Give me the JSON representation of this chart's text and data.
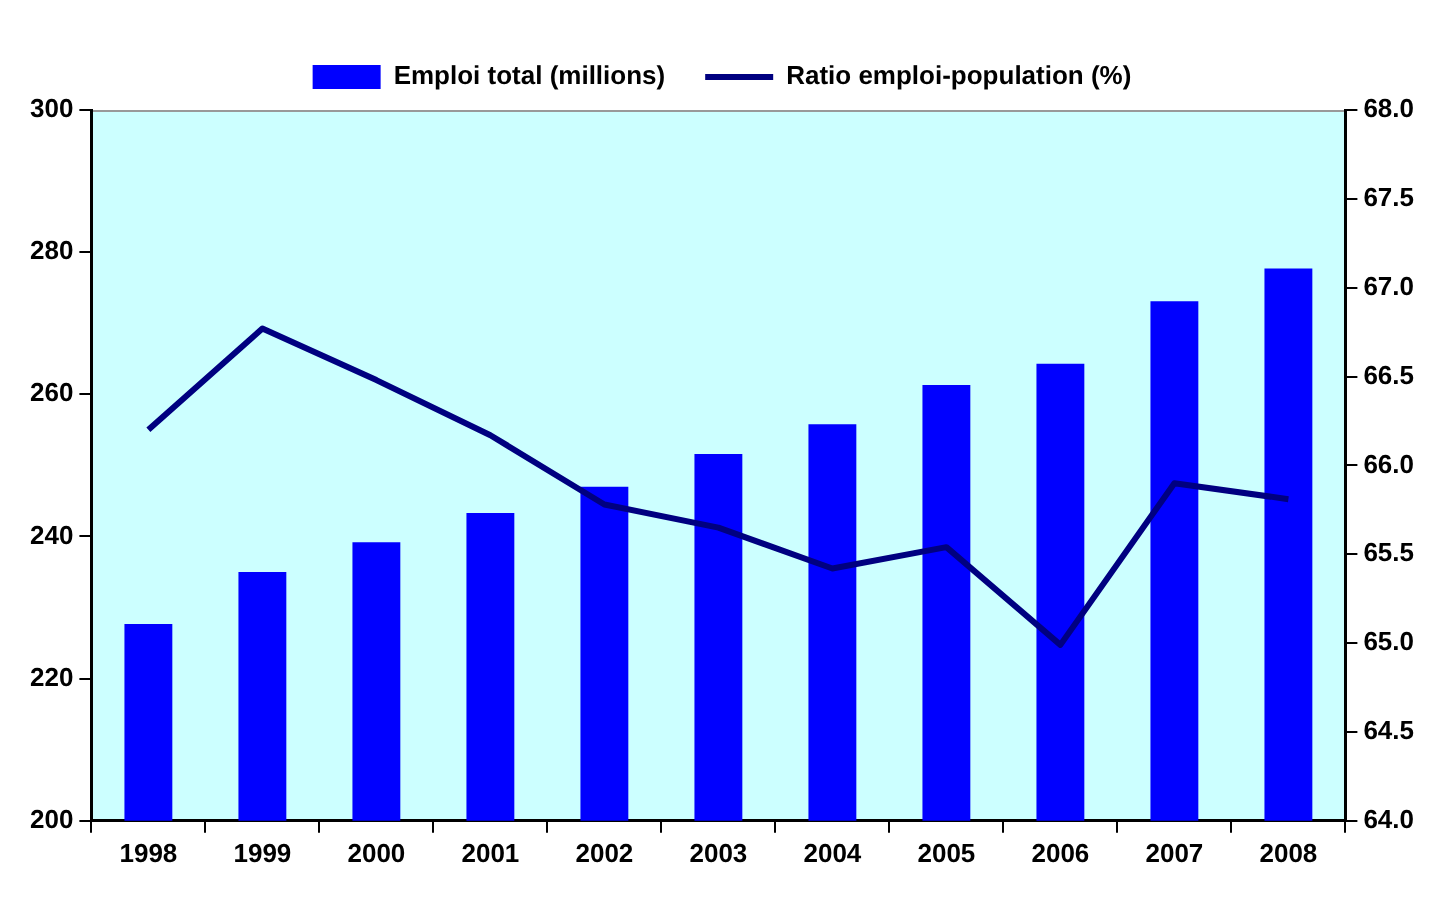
{
  "chart_data": {
    "type": "bar",
    "categories": [
      "1998",
      "1999",
      "2000",
      "2001",
      "2002",
      "2003",
      "2004",
      "2005",
      "2006",
      "2007",
      "2008"
    ],
    "series": [
      {
        "name": "Emploi total (millions)",
        "color": "#0000ff",
        "values": [
          227.7,
          235.0,
          239.2,
          243.3,
          247.0,
          251.6,
          255.8,
          261.3,
          264.3,
          273.1,
          277.7
        ]
      },
      {
        "name": "Ratio emploi-population (%)",
        "type": "line",
        "axis": "y2",
        "color": "#000080",
        "values": [
          66.2,
          66.77,
          66.48,
          66.17,
          65.78,
          65.65,
          65.42,
          65.54,
          64.99,
          65.9,
          65.81
        ]
      }
    ],
    "ylim": [
      200,
      300
    ],
    "yticks": [
      200,
      220,
      240,
      260,
      280,
      300
    ],
    "y2lim": [
      64,
      68
    ],
    "y2ticks": [
      {
        "value": 64,
        "label": "64.0"
      },
      {
        "value": 64.5,
        "label": "64.5"
      },
      {
        "value": 65,
        "label": "65.0"
      },
      {
        "value": 65.5,
        "label": "65.5"
      },
      {
        "value": 66,
        "label": "66.0"
      },
      {
        "value": 66.5,
        "label": "66.5"
      },
      {
        "value": 67,
        "label": "67.0"
      },
      {
        "value": 67.5,
        "label": "67.5"
      },
      {
        "value": 68,
        "label": "68.0"
      }
    ],
    "grid": false,
    "legend": "top",
    "marker": "none"
  }
}
